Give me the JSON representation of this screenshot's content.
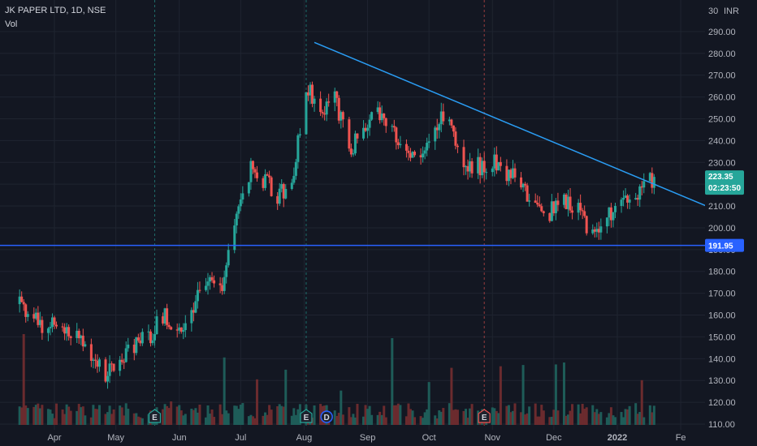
{
  "colors": {
    "background": "#131722",
    "grid": "#1f2430",
    "up": "#26a69a",
    "down": "#ef5350",
    "up_vol": "#1e5c58",
    "down_vol": "#6b2b2e",
    "trendline": "#2a9df4",
    "support": "#2962ff",
    "axis_text": "#b2b5be",
    "session_line_green": "#26a69a",
    "session_line_red": "#ef5350"
  },
  "chart_data": {
    "type": "candlestick",
    "title": "JK PAPER LTD, 1D, NSE",
    "volume_label": "Vol",
    "currency": "INR",
    "price_axis_top_label": "30",
    "y_ticks": [
      "290.00",
      "280.00",
      "270.00",
      "260.00",
      "250.00",
      "240.00",
      "230.00",
      "220.00",
      "210.00",
      "200.00",
      "190.00",
      "180.00",
      "170.00",
      "160.00",
      "150.00",
      "140.00",
      "130.00",
      "120.00",
      "110.00"
    ],
    "ylim": [
      110,
      300
    ],
    "x_ticks": [
      "Apr",
      "May",
      "Jun",
      "Jul",
      "Aug",
      "Sep",
      "Oct",
      "Nov",
      "Dec",
      "2022",
      "Fe"
    ],
    "last_price": "223.35",
    "countdown": "02:23:50",
    "support_level": "191.95",
    "trendline_from": {
      "date": "2021-08-06",
      "price": 285
    },
    "trendline_to": {
      "date": "2022-01-19",
      "price": 220
    },
    "events": [
      {
        "type": "E",
        "date": "2021-05-20",
        "kind": "earnings"
      },
      {
        "type": "E",
        "date": "2021-08-02",
        "kind": "earnings"
      },
      {
        "type": "D",
        "date": "2021-08-12",
        "kind": "dividend"
      },
      {
        "type": "E",
        "date": "2021-10-28",
        "kind": "earnings"
      }
    ],
    "anchors": [
      [
        "2021-03-15",
        165
      ],
      [
        "2021-03-22",
        158
      ],
      [
        "2021-03-29",
        154
      ],
      [
        "2021-04-05",
        156
      ],
      [
        "2021-04-12",
        150
      ],
      [
        "2021-04-19",
        142
      ],
      [
        "2021-04-26",
        133
      ],
      [
        "2021-05-03",
        140
      ],
      [
        "2021-05-10",
        145
      ],
      [
        "2021-05-17",
        150
      ],
      [
        "2021-05-24",
        160
      ],
      [
        "2021-05-31",
        152
      ],
      [
        "2021-06-07",
        163
      ],
      [
        "2021-06-14",
        175
      ],
      [
        "2021-06-21",
        170
      ],
      [
        "2021-06-28",
        200
      ],
      [
        "2021-07-01",
        215
      ],
      [
        "2021-07-06",
        228
      ],
      [
        "2021-07-12",
        222
      ],
      [
        "2021-07-19",
        215
      ],
      [
        "2021-07-26",
        218
      ],
      [
        "2021-08-02",
        265
      ],
      [
        "2021-08-09",
        255
      ],
      [
        "2021-08-16",
        260
      ],
      [
        "2021-08-23",
        235
      ],
      [
        "2021-08-30",
        245
      ],
      [
        "2021-09-06",
        255
      ],
      [
        "2021-09-13",
        247
      ],
      [
        "2021-09-20",
        235
      ],
      [
        "2021-09-27",
        230
      ],
      [
        "2021-10-04",
        248
      ],
      [
        "2021-10-11",
        252
      ],
      [
        "2021-10-18",
        225
      ],
      [
        "2021-10-25",
        228
      ],
      [
        "2021-11-01",
        230
      ],
      [
        "2021-11-08",
        225
      ],
      [
        "2021-11-15",
        220
      ],
      [
        "2021-11-22",
        210
      ],
      [
        "2021-11-29",
        207
      ],
      [
        "2021-12-06",
        213
      ],
      [
        "2021-12-13",
        210
      ],
      [
        "2021-12-20",
        195
      ],
      [
        "2021-12-27",
        205
      ],
      [
        "2022-01-03",
        210
      ],
      [
        "2022-01-10",
        213
      ],
      [
        "2022-01-19",
        223
      ]
    ]
  }
}
